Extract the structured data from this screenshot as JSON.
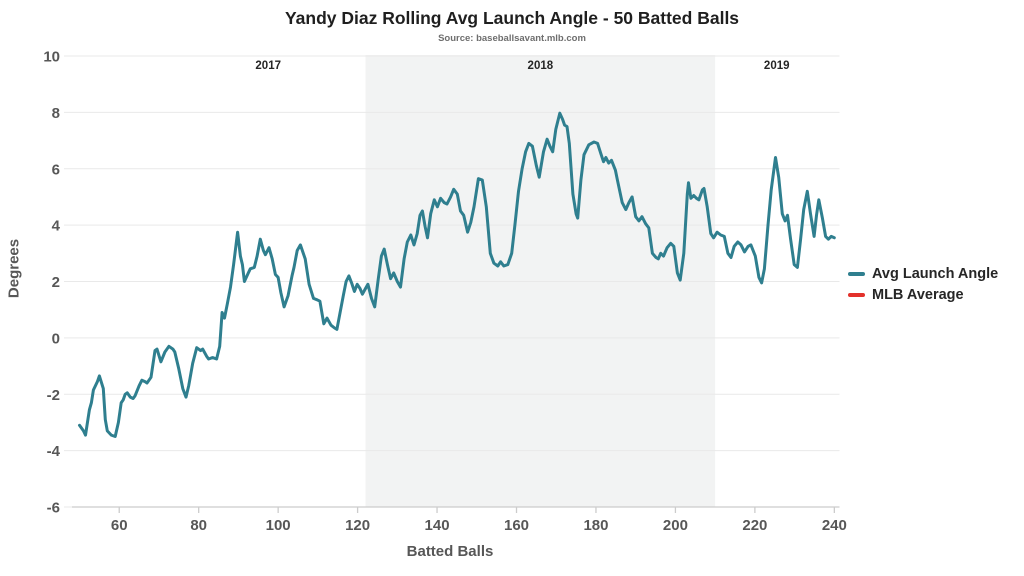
{
  "title": "Yandy Diaz Rolling Avg Launch Angle - 50 Batted Balls",
  "subtitle": "Source: baseballsavant.mlb.com",
  "colors": {
    "line": "#2f7f8f",
    "mlb_average": "#e3312b",
    "band": "#f2f3f3",
    "grid": "#e9e9e9",
    "axis": "#cccccc",
    "tick_text": "#575757",
    "year_text": "#262626",
    "title_text": "#1f1f1f",
    "subtitle_text": "#6e6e6e",
    "background": "#ffffff"
  },
  "legend": [
    {
      "label": "Avg Launch Angle",
      "color": "#2f7f8f"
    },
    {
      "label": "MLB Average",
      "color": "#e3312b"
    }
  ],
  "chart_data": {
    "type": "line",
    "title": "Yandy Diaz Rolling Avg Launch Angle - 50 Batted Balls",
    "subtitle": "Source: baseballsavant.mlb.com",
    "xlabel": "Batted Balls",
    "ylabel": "Degrees",
    "xlim": [
      46.1,
      241.3
    ],
    "ylim": [
      -6,
      10
    ],
    "xticks": [
      60,
      80,
      100,
      120,
      140,
      160,
      180,
      200,
      220,
      240
    ],
    "yticks": [
      10,
      8,
      6,
      4,
      2,
      0,
      -2,
      -4,
      -6
    ],
    "grid": "horizontal",
    "legend_position": "right",
    "year_bands": [
      {
        "label": "2017",
        "start": 46.1,
        "end": 122,
        "shaded": false,
        "label_x": 97.5
      },
      {
        "label": "2018",
        "start": 122,
        "end": 210,
        "shaded": true,
        "label_x": 166
      },
      {
        "label": "2019",
        "start": 210,
        "end": 241.3,
        "shaded": false,
        "label_x": 225.5
      }
    ],
    "series": [
      {
        "name": "Avg Launch Angle",
        "color": "#2f7f8f",
        "points": [
          [
            50,
            -3.1
          ],
          [
            51,
            -3.3
          ],
          [
            51.5,
            -3.45
          ],
          [
            52.5,
            -2.55
          ],
          [
            53,
            -2.3
          ],
          [
            53.5,
            -1.85
          ],
          [
            54.5,
            -1.55
          ],
          [
            55,
            -1.35
          ],
          [
            56,
            -1.8
          ],
          [
            56.5,
            -2.9
          ],
          [
            57,
            -3.3
          ],
          [
            58,
            -3.45
          ],
          [
            59,
            -3.5
          ],
          [
            59.8,
            -3.0
          ],
          [
            60.5,
            -2.3
          ],
          [
            61,
            -2.2
          ],
          [
            61.5,
            -2.0
          ],
          [
            62,
            -1.95
          ],
          [
            62.8,
            -2.1
          ],
          [
            63.5,
            -2.15
          ],
          [
            64,
            -2.05
          ],
          [
            65,
            -1.7
          ],
          [
            65.7,
            -1.5
          ],
          [
            66.5,
            -1.55
          ],
          [
            67,
            -1.6
          ],
          [
            68,
            -1.4
          ],
          [
            69,
            -0.45
          ],
          [
            69.5,
            -0.4
          ],
          [
            70.5,
            -0.85
          ],
          [
            71.5,
            -0.5
          ],
          [
            72.5,
            -0.3
          ],
          [
            73.5,
            -0.4
          ],
          [
            74,
            -0.5
          ],
          [
            75,
            -1.1
          ],
          [
            76,
            -1.8
          ],
          [
            76.8,
            -2.1
          ],
          [
            77.5,
            -1.7
          ],
          [
            78.5,
            -0.9
          ],
          [
            79.5,
            -0.35
          ],
          [
            80.5,
            -0.45
          ],
          [
            81,
            -0.4
          ],
          [
            82,
            -0.65
          ],
          [
            82.5,
            -0.75
          ],
          [
            83.5,
            -0.7
          ],
          [
            84.5,
            -0.75
          ],
          [
            85.3,
            -0.3
          ],
          [
            85.9,
            0.9
          ],
          [
            86.5,
            0.7
          ],
          [
            87.2,
            1.2
          ],
          [
            88,
            1.8
          ],
          [
            88.8,
            2.6
          ],
          [
            89.8,
            3.75
          ],
          [
            90.5,
            2.9
          ],
          [
            91,
            2.6
          ],
          [
            91.5,
            2.0
          ],
          [
            92.5,
            2.3
          ],
          [
            93,
            2.45
          ],
          [
            94,
            2.5
          ],
          [
            94.7,
            2.9
          ],
          [
            95.5,
            3.5
          ],
          [
            96.3,
            3.1
          ],
          [
            96.8,
            2.95
          ],
          [
            97.7,
            3.2
          ],
          [
            98.5,
            2.8
          ],
          [
            99.3,
            2.25
          ],
          [
            100,
            2.15
          ],
          [
            100.7,
            1.6
          ],
          [
            101.5,
            1.1
          ],
          [
            102.5,
            1.5
          ],
          [
            103.5,
            2.2
          ],
          [
            104,
            2.5
          ],
          [
            104.8,
            3.1
          ],
          [
            105.6,
            3.3
          ],
          [
            106.8,
            2.8
          ],
          [
            107.8,
            1.9
          ],
          [
            108.9,
            1.4
          ],
          [
            109.8,
            1.35
          ],
          [
            110.5,
            1.3
          ],
          [
            111.5,
            0.5
          ],
          [
            112.3,
            0.7
          ],
          [
            113.3,
            0.45
          ],
          [
            114.2,
            0.35
          ],
          [
            114.8,
            0.3
          ],
          [
            115.6,
            0.9
          ],
          [
            116.4,
            1.5
          ],
          [
            117.1,
            2.0
          ],
          [
            117.8,
            2.2
          ],
          [
            118.5,
            1.95
          ],
          [
            119.2,
            1.65
          ],
          [
            119.9,
            1.9
          ],
          [
            120.6,
            1.75
          ],
          [
            121.2,
            1.55
          ],
          [
            122,
            1.75
          ],
          [
            122.6,
            1.9
          ],
          [
            123.5,
            1.4
          ],
          [
            124.3,
            1.1
          ],
          [
            125.2,
            2.1
          ],
          [
            126,
            2.9
          ],
          [
            126.7,
            3.15
          ],
          [
            127.5,
            2.6
          ],
          [
            128.3,
            2.1
          ],
          [
            129.1,
            2.3
          ],
          [
            130,
            2.0
          ],
          [
            130.8,
            1.8
          ],
          [
            131.7,
            2.8
          ],
          [
            132.5,
            3.4
          ],
          [
            133.4,
            3.65
          ],
          [
            134.2,
            3.3
          ],
          [
            135,
            3.7
          ],
          [
            135.7,
            4.35
          ],
          [
            136.3,
            4.5
          ],
          [
            137,
            3.95
          ],
          [
            137.6,
            3.55
          ],
          [
            138.4,
            4.4
          ],
          [
            139.3,
            4.9
          ],
          [
            140.1,
            4.65
          ],
          [
            140.9,
            4.95
          ],
          [
            141.8,
            4.8
          ],
          [
            142.5,
            4.75
          ],
          [
            143.4,
            5.0
          ],
          [
            144.2,
            5.27
          ],
          [
            145.1,
            5.1
          ],
          [
            145.9,
            4.5
          ],
          [
            146.7,
            4.35
          ],
          [
            147.7,
            3.75
          ],
          [
            148.5,
            4.1
          ],
          [
            149.3,
            4.65
          ],
          [
            150.4,
            5.65
          ],
          [
            151.4,
            5.6
          ],
          [
            152.4,
            4.65
          ],
          [
            153.4,
            3.0
          ],
          [
            154.3,
            2.65
          ],
          [
            155.3,
            2.55
          ],
          [
            156,
            2.7
          ],
          [
            156.8,
            2.55
          ],
          [
            157.8,
            2.6
          ],
          [
            158.8,
            3.0
          ],
          [
            159.6,
            4.0
          ],
          [
            160.5,
            5.2
          ],
          [
            161.4,
            6.0
          ],
          [
            162.3,
            6.6
          ],
          [
            163.1,
            6.9
          ],
          [
            164,
            6.8
          ],
          [
            165,
            6.1
          ],
          [
            165.7,
            5.7
          ],
          [
            166.8,
            6.6
          ],
          [
            167.7,
            7.05
          ],
          [
            168.4,
            6.8
          ],
          [
            169.1,
            6.6
          ],
          [
            169.9,
            7.4
          ],
          [
            170.9,
            7.97
          ],
          [
            171.6,
            7.75
          ],
          [
            172.1,
            7.55
          ],
          [
            172.7,
            7.5
          ],
          [
            173.3,
            6.9
          ],
          [
            174.2,
            5.1
          ],
          [
            175,
            4.4
          ],
          [
            175.4,
            4.25
          ],
          [
            176.2,
            5.6
          ],
          [
            177,
            6.5
          ],
          [
            178.2,
            6.85
          ],
          [
            179.5,
            6.95
          ],
          [
            180.4,
            6.9
          ],
          [
            181.2,
            6.55
          ],
          [
            181.9,
            6.25
          ],
          [
            182.5,
            6.4
          ],
          [
            183.2,
            6.2
          ],
          [
            183.9,
            6.3
          ],
          [
            184.9,
            5.95
          ],
          [
            185.4,
            5.6
          ],
          [
            186.6,
            4.8
          ],
          [
            187.5,
            4.55
          ],
          [
            188.3,
            4.8
          ],
          [
            189.1,
            5.0
          ],
          [
            190,
            4.3
          ],
          [
            190.8,
            4.15
          ],
          [
            191.6,
            4.3
          ],
          [
            192.5,
            4.05
          ],
          [
            193.3,
            3.9
          ],
          [
            194.2,
            3.0
          ],
          [
            195.1,
            2.85
          ],
          [
            195.7,
            2.8
          ],
          [
            196.3,
            3.0
          ],
          [
            197,
            2.9
          ],
          [
            197.9,
            3.2
          ],
          [
            198.8,
            3.35
          ],
          [
            199.6,
            3.25
          ],
          [
            200.5,
            2.3
          ],
          [
            201.2,
            2.05
          ],
          [
            202.1,
            3.0
          ],
          [
            203,
            5.1
          ],
          [
            203.3,
            5.5
          ],
          [
            203.9,
            4.95
          ],
          [
            204.6,
            5.05
          ],
          [
            205.3,
            4.95
          ],
          [
            205.9,
            4.9
          ],
          [
            206.8,
            5.25
          ],
          [
            207.2,
            5.3
          ],
          [
            208,
            4.65
          ],
          [
            208.9,
            3.7
          ],
          [
            209.6,
            3.55
          ],
          [
            210.5,
            3.75
          ],
          [
            211.4,
            3.65
          ],
          [
            212.3,
            3.6
          ],
          [
            213.2,
            3.0
          ],
          [
            214,
            2.85
          ],
          [
            214.8,
            3.25
          ],
          [
            215.7,
            3.4
          ],
          [
            216.5,
            3.3
          ],
          [
            217.4,
            3.05
          ],
          [
            218.3,
            3.25
          ],
          [
            219,
            3.3
          ],
          [
            220.1,
            2.9
          ],
          [
            221,
            2.15
          ],
          [
            221.7,
            1.95
          ],
          [
            222.4,
            2.45
          ],
          [
            223.3,
            4.0
          ],
          [
            224.1,
            5.25
          ],
          [
            225.2,
            6.4
          ],
          [
            226,
            5.7
          ],
          [
            226.9,
            4.4
          ],
          [
            227.6,
            4.15
          ],
          [
            228.2,
            4.35
          ],
          [
            229,
            3.5
          ],
          [
            229.9,
            2.6
          ],
          [
            230.7,
            2.5
          ],
          [
            231.5,
            3.5
          ],
          [
            232.3,
            4.55
          ],
          [
            233.2,
            5.2
          ],
          [
            234,
            4.4
          ],
          [
            234.9,
            3.6
          ],
          [
            235.5,
            4.35
          ],
          [
            236.1,
            4.9
          ],
          [
            237,
            4.25
          ],
          [
            237.8,
            3.6
          ],
          [
            238.5,
            3.5
          ],
          [
            239.2,
            3.6
          ],
          [
            240,
            3.55
          ]
        ]
      },
      {
        "name": "MLB Average",
        "color": "#e3312b",
        "points": []
      }
    ]
  }
}
